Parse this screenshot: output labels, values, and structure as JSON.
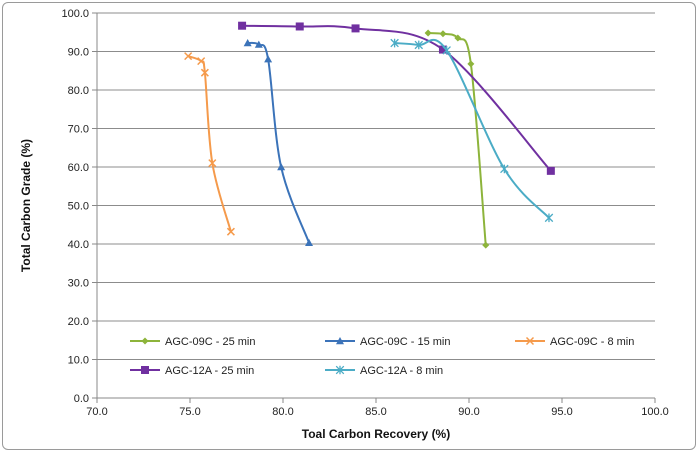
{
  "chart_data": {
    "type": "line",
    "title": "",
    "xlabel": "Toal Carbon Recovery (%)",
    "ylabel": "Total Carbon Grade (%)",
    "xlim": [
      70.0,
      100.0
    ],
    "ylim": [
      0.0,
      100.0
    ],
    "x_ticks": [
      "70.0",
      "75.0",
      "80.0",
      "85.0",
      "90.0",
      "95.0",
      "100.0"
    ],
    "y_ticks": [
      "0.0",
      "10.0",
      "20.0",
      "30.0",
      "40.0",
      "50.0",
      "60.0",
      "70.0",
      "80.0",
      "90.0",
      "100.0"
    ],
    "grid": "horizontal",
    "legend_position": "bottom",
    "series": [
      {
        "name": "AGC-09C - 25 min",
        "color": "#8DB43B",
        "marker": "diamond",
        "points": [
          [
            87.8,
            94.8
          ],
          [
            88.6,
            94.6
          ],
          [
            89.4,
            93.5
          ],
          [
            90.1,
            86.8
          ],
          [
            90.9,
            39.7
          ]
        ]
      },
      {
        "name": "AGC-09C - 15 min",
        "color": "#3B73B9",
        "marker": "triangle",
        "points": [
          [
            78.1,
            92.2
          ],
          [
            78.7,
            91.8
          ],
          [
            79.2,
            88.0
          ],
          [
            79.9,
            60.0
          ],
          [
            81.4,
            40.3
          ]
        ]
      },
      {
        "name": "AGC-09C - 8 min",
        "color": "#F59A4B",
        "marker": "x",
        "points": [
          [
            74.9,
            88.8
          ],
          [
            75.6,
            87.5
          ],
          [
            75.8,
            84.5
          ],
          [
            76.2,
            61.0
          ],
          [
            77.2,
            43.2
          ]
        ]
      },
      {
        "name": "AGC-12A - 25 min",
        "color": "#7030A0",
        "marker": "square",
        "points": [
          [
            77.8,
            96.7
          ],
          [
            80.9,
            96.5
          ],
          [
            83.9,
            96.0
          ],
          [
            88.6,
            90.5
          ],
          [
            94.4,
            59.0
          ]
        ]
      },
      {
        "name": "AGC-12A - 8 min",
        "color": "#4BACC6",
        "marker": "star",
        "points": [
          [
            86.0,
            92.2
          ],
          [
            87.3,
            91.7
          ],
          [
            88.8,
            90.3
          ],
          [
            91.9,
            59.5
          ],
          [
            94.3,
            46.8
          ]
        ]
      }
    ]
  }
}
